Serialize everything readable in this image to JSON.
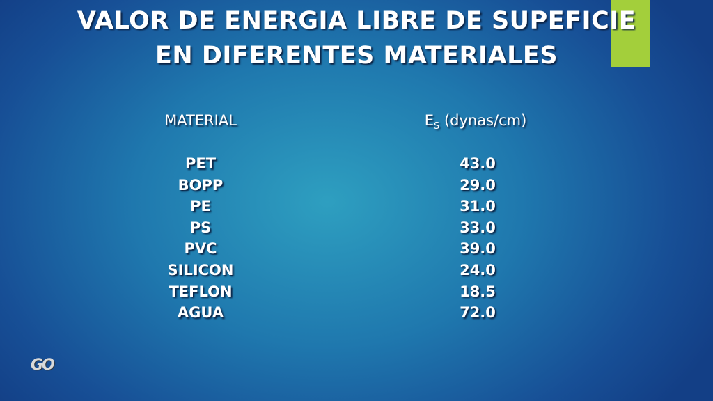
{
  "header": {
    "title_lines": [
      "VALOR DE ENERGIA LIBRE DE SUPEFICIE",
      "EN DIFERENTES MATERIALES"
    ]
  },
  "table": {
    "columns": [
      {
        "text": "MATERIAL"
      },
      {
        "main": "E",
        "sub": "S",
        "unit": "(dynas/cm)"
      }
    ],
    "rows": [
      [
        "PET",
        "43.0"
      ],
      [
        "BOPP",
        "29.0"
      ],
      [
        "PE",
        "31.0"
      ],
      [
        "PS",
        "33.0"
      ],
      [
        "PVC",
        "39.0"
      ],
      [
        "SILICON",
        "24.0"
      ],
      [
        "TEFLON",
        "18.5"
      ],
      [
        "AGUA",
        "72.0"
      ]
    ]
  },
  "logo": "GO"
}
